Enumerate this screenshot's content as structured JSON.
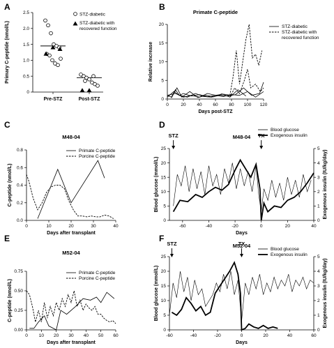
{
  "chart_data": [
    {
      "id": "A",
      "panel_letter": "A",
      "type": "scatter",
      "title": "",
      "ylabel": "Primary C-peptide (nmol/L)",
      "categories": [
        "Pre-STZ",
        "Post-STZ"
      ],
      "ylim": [
        0,
        2.5
      ],
      "yticks": [
        "0",
        "0.5",
        "1.0",
        "1.5",
        "2.0",
        "2.5"
      ],
      "ytick_values": [
        0,
        0.5,
        1.0,
        1.5,
        2.0,
        2.5
      ],
      "legend": [
        "STZ-diabetic",
        "STZ-diabetic with recovered function"
      ],
      "series": [
        {
          "name": "STZ-diabetic",
          "marker": "open-circle",
          "points": [
            {
              "c": 0,
              "y": 2.25
            },
            {
              "c": 0,
              "y": 2.1
            },
            {
              "c": 0,
              "y": 1.85
            },
            {
              "c": 0,
              "y": 1.5
            },
            {
              "c": 0,
              "y": 1.45
            },
            {
              "c": 0,
              "y": 1.4
            },
            {
              "c": 0,
              "y": 1.2
            },
            {
              "c": 0,
              "y": 1.15
            },
            {
              "c": 0,
              "y": 1.0
            },
            {
              "c": 0,
              "y": 0.9
            },
            {
              "c": 0,
              "y": 0.85
            },
            {
              "c": 0,
              "y": 1.05
            },
            {
              "c": 1,
              "y": 0.55
            },
            {
              "c": 1,
              "y": 0.5
            },
            {
              "c": 1,
              "y": 0.45
            },
            {
              "c": 1,
              "y": 0.4
            },
            {
              "c": 1,
              "y": 0.3
            },
            {
              "c": 1,
              "y": 0.25
            },
            {
              "c": 1,
              "y": 0.2
            },
            {
              "c": 1,
              "y": 0.35
            },
            {
              "c": 1,
              "y": 0.5
            }
          ]
        },
        {
          "name": "STZ-diabetic with recovered function",
          "marker": "filled-triangle",
          "points": [
            {
              "c": 0,
              "y": 1.2
            },
            {
              "c": 0,
              "y": 1.4
            },
            {
              "c": 0,
              "y": 1.35
            },
            {
              "c": 1,
              "y": 0.05
            },
            {
              "c": 1,
              "y": 0.05
            }
          ]
        }
      ],
      "means": [
        1.45,
        0.45
      ]
    },
    {
      "id": "B",
      "panel_letter": "B",
      "type": "line",
      "title": "Primate C-peptide",
      "xlabel": "Days post-STZ",
      "ylabel": "Relative increase",
      "xlim": [
        0,
        120
      ],
      "ylim": [
        0,
        20
      ],
      "xticks": [
        0,
        20,
        40,
        60,
        80,
        100,
        120
      ],
      "yticks": [
        0,
        5,
        10,
        15,
        20
      ],
      "legend": [
        "STZ-diabetic",
        "STZ-diabetic with recovered function"
      ],
      "series": [
        {
          "name": "STZ-diabetic",
          "style": "solid",
          "x": [
            0,
            5,
            10,
            15,
            20,
            30,
            40,
            50,
            60,
            70,
            80
          ],
          "y": [
            1,
            0.5,
            2.5,
            1,
            1.5,
            0.8,
            1.2,
            0.6,
            1,
            1.3,
            1
          ]
        },
        {
          "name": "STZ-diabetic",
          "style": "solid",
          "x": [
            0,
            8,
            15,
            25,
            35,
            45,
            55,
            65,
            75,
            85,
            95,
            105,
            115,
            120
          ],
          "y": [
            0.5,
            2,
            1,
            0.5,
            1.5,
            0.7,
            0.5,
            1,
            0.8,
            1.2,
            3,
            1,
            1.5,
            4.5
          ]
        },
        {
          "name": "STZ-diabetic",
          "style": "solid",
          "x": [
            0,
            10,
            20,
            30,
            40,
            50,
            60,
            70,
            80,
            90,
            100,
            110,
            120
          ],
          "y": [
            1,
            1.5,
            0.5,
            1,
            0.5,
            1.5,
            1,
            0.7,
            1.2,
            1,
            2,
            0.5,
            2
          ]
        },
        {
          "name": "STZ-diabetic",
          "style": "solid",
          "x": [
            5,
            12,
            18,
            28,
            38,
            48,
            58,
            68,
            78,
            88,
            98
          ],
          "y": [
            0.3,
            3,
            0.5,
            2,
            0.4,
            1,
            0.6,
            1.4,
            0.5,
            2.5,
            0.8
          ]
        },
        {
          "name": "STZ-diabetic with recovered function",
          "style": "dashed",
          "x": [
            78,
            82,
            86,
            90,
            94,
            98,
            102,
            106,
            110,
            114,
            118
          ],
          "y": [
            1,
            6,
            13,
            4,
            10,
            16,
            20,
            11,
            12,
            9,
            13
          ]
        },
        {
          "name": "STZ-diabetic with recovered function",
          "style": "dashed",
          "x": [
            78,
            84,
            90,
            96,
            100,
            104,
            110,
            116,
            120
          ],
          "y": [
            0.5,
            3,
            1.5,
            5,
            8,
            3,
            4,
            2,
            3
          ]
        }
      ]
    },
    {
      "id": "C",
      "panel_letter": "C",
      "type": "line",
      "title": "M48-04",
      "xlabel": "Days after transplant",
      "ylabel": "C-peptide (nmol/L)",
      "xlim": [
        0,
        40
      ],
      "ylim": [
        0,
        0.8
      ],
      "xticks": [
        0,
        10,
        20,
        30,
        40
      ],
      "yticks": [
        0.0,
        0.2,
        0.4,
        0.6,
        0.8
      ],
      "ytick_labels": [
        "0.0",
        "0.2",
        "0.4",
        "0.6",
        "0.8"
      ],
      "legend": [
        "Primate C-peptide",
        "Porcine C-peptide"
      ],
      "series": [
        {
          "name": "Primate C-peptide",
          "style": "solid",
          "x": [
            5,
            14,
            20,
            32,
            35
          ],
          "y": [
            0.02,
            0.58,
            0.2,
            0.68,
            0.48
          ]
        },
        {
          "name": "Porcine C-peptide",
          "style": "dashed",
          "x": [
            0,
            1,
            3,
            5,
            7,
            9,
            11,
            13,
            15,
            17,
            19,
            21,
            23,
            25,
            27,
            29,
            31,
            33,
            35,
            37,
            39
          ],
          "y": [
            0.52,
            0.45,
            0.25,
            0.12,
            0.2,
            0.32,
            0.38,
            0.4,
            0.4,
            0.36,
            0.22,
            0.12,
            0.05,
            0.05,
            0.04,
            0.05,
            0.04,
            0.04,
            0.06,
            0.05,
            0.02
          ]
        }
      ]
    },
    {
      "id": "D",
      "panel_letter": "D",
      "type": "line",
      "title": "M48-04",
      "xlabel": "Days",
      "ylabel": "Blood glucose (mmol/L)",
      "y2label": "Exogenous insulin (IU/kg/day)",
      "xlim": [
        -70,
        40
      ],
      "ylim": [
        0,
        25
      ],
      "y2lim": [
        0,
        5
      ],
      "xticks": [
        -60,
        -40,
        -20,
        0,
        20,
        40
      ],
      "yticks": [
        0,
        5,
        10,
        15,
        20,
        25
      ],
      "y2ticks": [
        0,
        1,
        2,
        3,
        4,
        5
      ],
      "legend": [
        "Blood glucose",
        "Exogenous insulin"
      ],
      "annotations": [
        {
          "text": "STZ",
          "x": -67
        },
        {
          "text": "TX",
          "x": 0
        }
      ],
      "series": [
        {
          "name": "Blood glucose",
          "style": "thin",
          "x": [
            -67,
            -64,
            -61,
            -58,
            -55,
            -52,
            -49,
            -46,
            -43,
            -40,
            -37,
            -34,
            -31,
            -28,
            -25,
            -22,
            -19,
            -16,
            -13,
            -10,
            -7,
            -4,
            -2,
            0,
            2,
            5,
            8,
            11,
            14,
            17,
            20,
            23,
            26,
            29,
            32,
            35,
            38
          ],
          "y": [
            5,
            16,
            12,
            19,
            10,
            18,
            11,
            17,
            9,
            19,
            12,
            16,
            9,
            18,
            13,
            20,
            11,
            18,
            12,
            17,
            10,
            19,
            9,
            3,
            11,
            7,
            14,
            8,
            13,
            7,
            15,
            9,
            14,
            8,
            16,
            10,
            14
          ]
        },
        {
          "name": "Exogenous insulin",
          "style": "thick",
          "x": [
            -67,
            -62,
            -56,
            -50,
            -45,
            -40,
            -35,
            -30,
            -25,
            -20,
            -16,
            -12,
            -8,
            -4,
            -1,
            0,
            2,
            5,
            10,
            15,
            20,
            25,
            30,
            35,
            40
          ],
          "y": [
            0.6,
            1.4,
            1.3,
            1.8,
            1.6,
            2.0,
            2.3,
            2.1,
            2.5,
            3.5,
            4.2,
            3.6,
            3.0,
            3.9,
            2.2,
            0.0,
            1.2,
            0.6,
            1.0,
            0.9,
            1.4,
            1.6,
            2.0,
            2.6,
            3.3
          ]
        }
      ]
    },
    {
      "id": "E",
      "panel_letter": "E",
      "type": "line",
      "title": "M52-04",
      "xlabel": "Days after transplant",
      "ylabel": "C-peptide (nmol/L)",
      "xlim": [
        0,
        60
      ],
      "ylim": [
        0,
        0.75
      ],
      "xticks": [
        0,
        10,
        20,
        30,
        40,
        50,
        60
      ],
      "yticks": [
        0.0,
        0.25,
        0.5,
        0.75
      ],
      "ytick_labels": [
        "0.00",
        "0.25",
        "0.50",
        "0.75"
      ],
      "legend": [
        "Primate C-peptide",
        "Porcine C-peptide"
      ],
      "series": [
        {
          "name": "Primate C-peptide",
          "style": "solid",
          "x": [
            2,
            5,
            8,
            12,
            15,
            20,
            23,
            27,
            33,
            38,
            43,
            47,
            50,
            54,
            59
          ],
          "y": [
            0.02,
            0.02,
            0.1,
            0.18,
            0.05,
            0.0,
            0.25,
            0.2,
            0.3,
            0.4,
            0.38,
            0.42,
            0.35,
            0.48,
            0.4
          ]
        },
        {
          "name": "Porcine C-peptide",
          "style": "dashed",
          "x": [
            0,
            2,
            4,
            6,
            8,
            10,
            12,
            14,
            16,
            18,
            20,
            22,
            24,
            26,
            28,
            30,
            32,
            34,
            36,
            38,
            40,
            42,
            44,
            46,
            48,
            50,
            52,
            54,
            56,
            58,
            60
          ],
          "y": [
            0.5,
            0.45,
            0.3,
            0.1,
            0.25,
            0.1,
            0.35,
            0.15,
            0.3,
            0.18,
            0.35,
            0.25,
            0.4,
            0.3,
            0.45,
            0.35,
            0.5,
            0.3,
            0.38,
            0.25,
            0.33,
            0.28,
            0.25,
            0.3,
            0.2,
            0.2,
            0.15,
            0.12,
            0.1,
            0.12,
            0.08
          ]
        }
      ]
    },
    {
      "id": "F",
      "panel_letter": "F",
      "type": "line",
      "title": "M52-04",
      "xlabel": "Days",
      "ylabel": "Blood glucose (mmol/L)",
      "y2label": "Exogenous insulin (IU/kg/day)",
      "xlim": [
        -60,
        60
      ],
      "ylim": [
        0,
        25
      ],
      "y2lim": [
        0,
        5
      ],
      "xticks": [
        -60,
        -40,
        -20,
        0,
        20,
        40,
        60
      ],
      "yticks": [
        0,
        5,
        10,
        15,
        20,
        25
      ],
      "y2ticks": [
        0,
        1,
        2,
        3,
        4,
        5
      ],
      "legend": [
        "Blood glucose",
        "Exogenous insulin"
      ],
      "annotations": [
        {
          "text": "STZ",
          "x": -58
        },
        {
          "text": "TX",
          "x": 0
        }
      ],
      "series": [
        {
          "name": "Blood glucose",
          "style": "thin",
          "x": [
            -60,
            -57,
            -54,
            -51,
            -48,
            -45,
            -42,
            -39,
            -36,
            -33,
            -30,
            -27,
            -24,
            -21,
            -18,
            -15,
            -12,
            -9,
            -6,
            -3,
            0,
            3,
            6,
            9,
            12,
            15,
            18,
            21,
            24,
            27,
            30,
            33,
            36,
            39,
            42,
            45,
            48,
            51,
            54,
            57,
            60
          ],
          "y": [
            5,
            16,
            11,
            20,
            13,
            18,
            10,
            17,
            12,
            14,
            8,
            10,
            12,
            16,
            13,
            19,
            14,
            20,
            12,
            17,
            3,
            16,
            12,
            18,
            14,
            19,
            12,
            16,
            13,
            18,
            14,
            17,
            15,
            19,
            13,
            17,
            15,
            18,
            14,
            17,
            16
          ]
        },
        {
          "name": "Exogenous insulin",
          "style": "thick",
          "x": [
            -58,
            -54,
            -50,
            -46,
            -42,
            -38,
            -34,
            -30,
            -26,
            -22,
            -18,
            -14,
            -10,
            -6,
            -3,
            -1,
            0,
            3,
            6,
            10,
            14,
            18,
            22,
            26,
            30
          ],
          "y": [
            1.2,
            1.0,
            1.4,
            2.2,
            1.8,
            1.3,
            1.6,
            1.0,
            1.2,
            2.5,
            3.0,
            3.5,
            4.0,
            4.6,
            3.8,
            2.5,
            0.0,
            0.1,
            0.4,
            0.2,
            0.1,
            0.3,
            0.1,
            0.2,
            0.1
          ]
        }
      ]
    }
  ]
}
